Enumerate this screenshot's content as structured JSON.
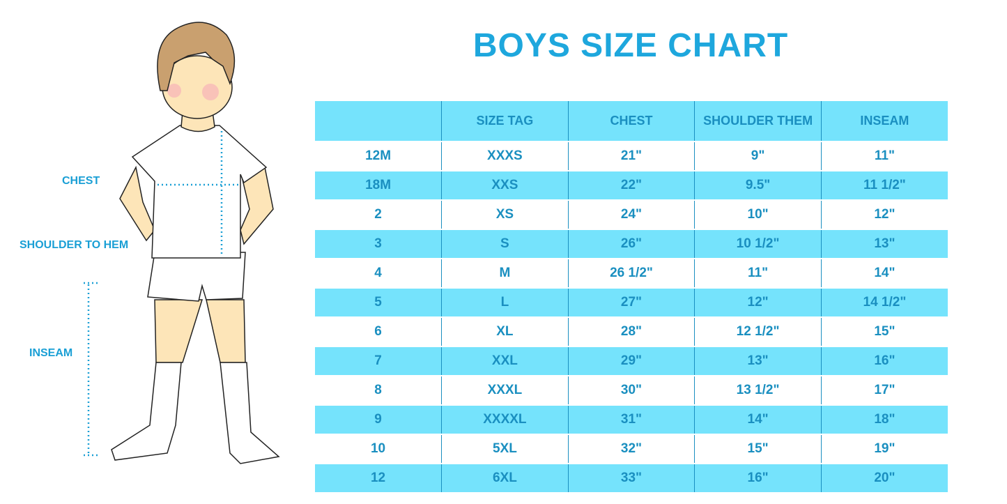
{
  "title": "BOYS SIZE CHART",
  "figure_labels": {
    "chest": "CHEST",
    "shoulder": "SHOULDER TO HEM",
    "inseam": "INSEAM"
  },
  "table": {
    "headers": [
      "",
      "SIZE TAG",
      "CHEST",
      "SHOULDER THEM",
      "INSEAM"
    ],
    "rows": [
      [
        "12M",
        "XXXS",
        "21\"",
        "9\"",
        "11\""
      ],
      [
        "18M",
        "XXS",
        "22\"",
        "9.5\"",
        "11 1/2\""
      ],
      [
        "2",
        "XS",
        "24\"",
        "10\"",
        "12\""
      ],
      [
        "3",
        "S",
        "26\"",
        "10 1/2\"",
        "13\""
      ],
      [
        "4",
        "M",
        "26 1/2\"",
        "11\"",
        "14\""
      ],
      [
        "5",
        "L",
        "27\"",
        "12\"",
        "14 1/2\""
      ],
      [
        "6",
        "XL",
        "28\"",
        "12 1/2\"",
        "15\""
      ],
      [
        "7",
        "XXL",
        "29\"",
        "13\"",
        "16\""
      ],
      [
        "8",
        "XXXL",
        "30\"",
        "13 1/2\"",
        "17\""
      ],
      [
        "9",
        "XXXXL",
        "31\"",
        "14\"",
        "18\""
      ],
      [
        "10",
        "5XL",
        "32\"",
        "15\"",
        "19\""
      ],
      [
        "12",
        "6XL",
        "33\"",
        "16\"",
        "20\""
      ]
    ]
  },
  "colors": {
    "accent": "#1ea7dd",
    "row_fill": "#75e3fc",
    "text": "#1a8fc0"
  }
}
